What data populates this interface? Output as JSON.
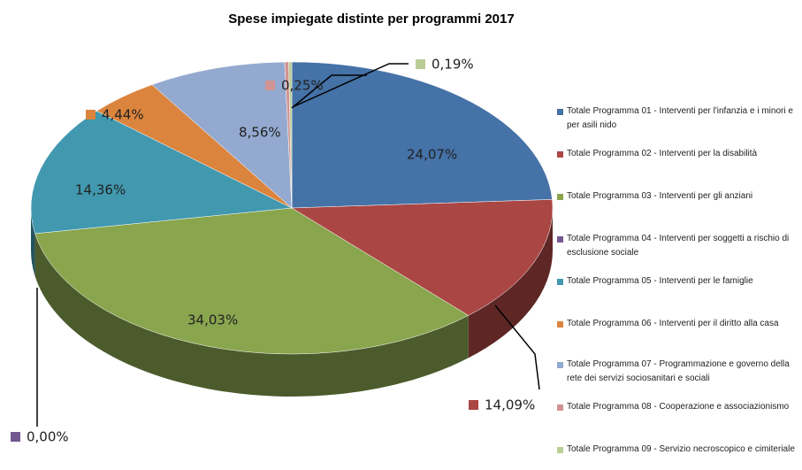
{
  "chart_data": {
    "type": "pie",
    "title": "Spese impiegate distinte per programmi 2017",
    "categories": [
      "Totale Programma 01 - Interventi per l'infanzia e i minori e per asili nido",
      "Totale Programma 02 - Interventi per la disabilità",
      "Totale Programma 03 - Interventi per gli anziani",
      "Totale Programma 04 - Interventi per soggetti a rischio di esclusione sociale",
      "Totale Programma 05 - Interventi per le famiglie",
      "Totale Programma 06 - Interventi per il diritto alla casa",
      "Totale Programma 07 - Programmazione e governo della rete dei servizi sociosanitari e sociali",
      "Totale Programma 08 - Cooperazione e associazionismo",
      "Totale Programma 09 - Servizio necroscopico e cimiteriale"
    ],
    "values": [
      24.07,
      14.09,
      34.03,
      0.0,
      14.36,
      4.44,
      8.56,
      0.25,
      0.19
    ],
    "value_labels": [
      "24,07%",
      "14,09%",
      "34,03%",
      "0,00%",
      "14,36%",
      "4,44%",
      "8,56%",
      "0,25%",
      "0,19%"
    ],
    "colors": [
      "#4572a7",
      "#aa4643",
      "#89a54e",
      "#71588f",
      "#4198af",
      "#db843d",
      "#93a9cf",
      "#d19392",
      "#b9cd96"
    ]
  }
}
